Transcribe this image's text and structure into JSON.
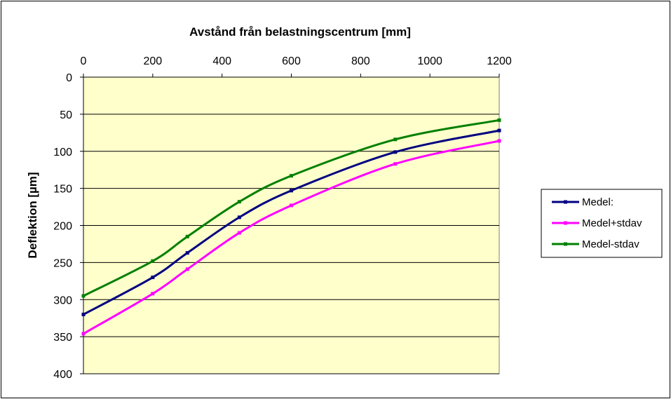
{
  "chart_data": {
    "type": "line",
    "title": "Avstånd från belastningscentrum [mm]",
    "xlabel": "Avstånd från belastningscentrum [mm]",
    "ylabel": "Deflektion [µm]",
    "xlim": [
      0,
      1200
    ],
    "ylim": [
      0,
      400
    ],
    "y_inverted": true,
    "x_axis_position": "top",
    "x_ticks": [
      0,
      200,
      400,
      600,
      800,
      1000,
      1200
    ],
    "y_ticks": [
      0,
      50,
      100,
      150,
      200,
      250,
      300,
      350,
      400
    ],
    "grid": "horizontal",
    "legend_position": "right",
    "plot_background": "#ffffcc",
    "series": [
      {
        "name": "Medel:",
        "color": "#000080",
        "x": [
          0,
          200,
          300,
          450,
          600,
          900,
          1200
        ],
        "y": [
          320,
          270,
          237,
          189,
          153,
          101,
          72
        ]
      },
      {
        "name": "Medel+stdav",
        "color": "#ff00ff",
        "x": [
          0,
          200,
          300,
          450,
          600,
          900,
          1200
        ],
        "y": [
          346,
          292,
          259,
          210,
          173,
          117,
          86
        ]
      },
      {
        "name": "Medel-stdav",
        "color": "#008000",
        "x": [
          0,
          200,
          300,
          450,
          600,
          900,
          1200
        ],
        "y": [
          295,
          248,
          215,
          168,
          133,
          84,
          58
        ]
      }
    ]
  }
}
